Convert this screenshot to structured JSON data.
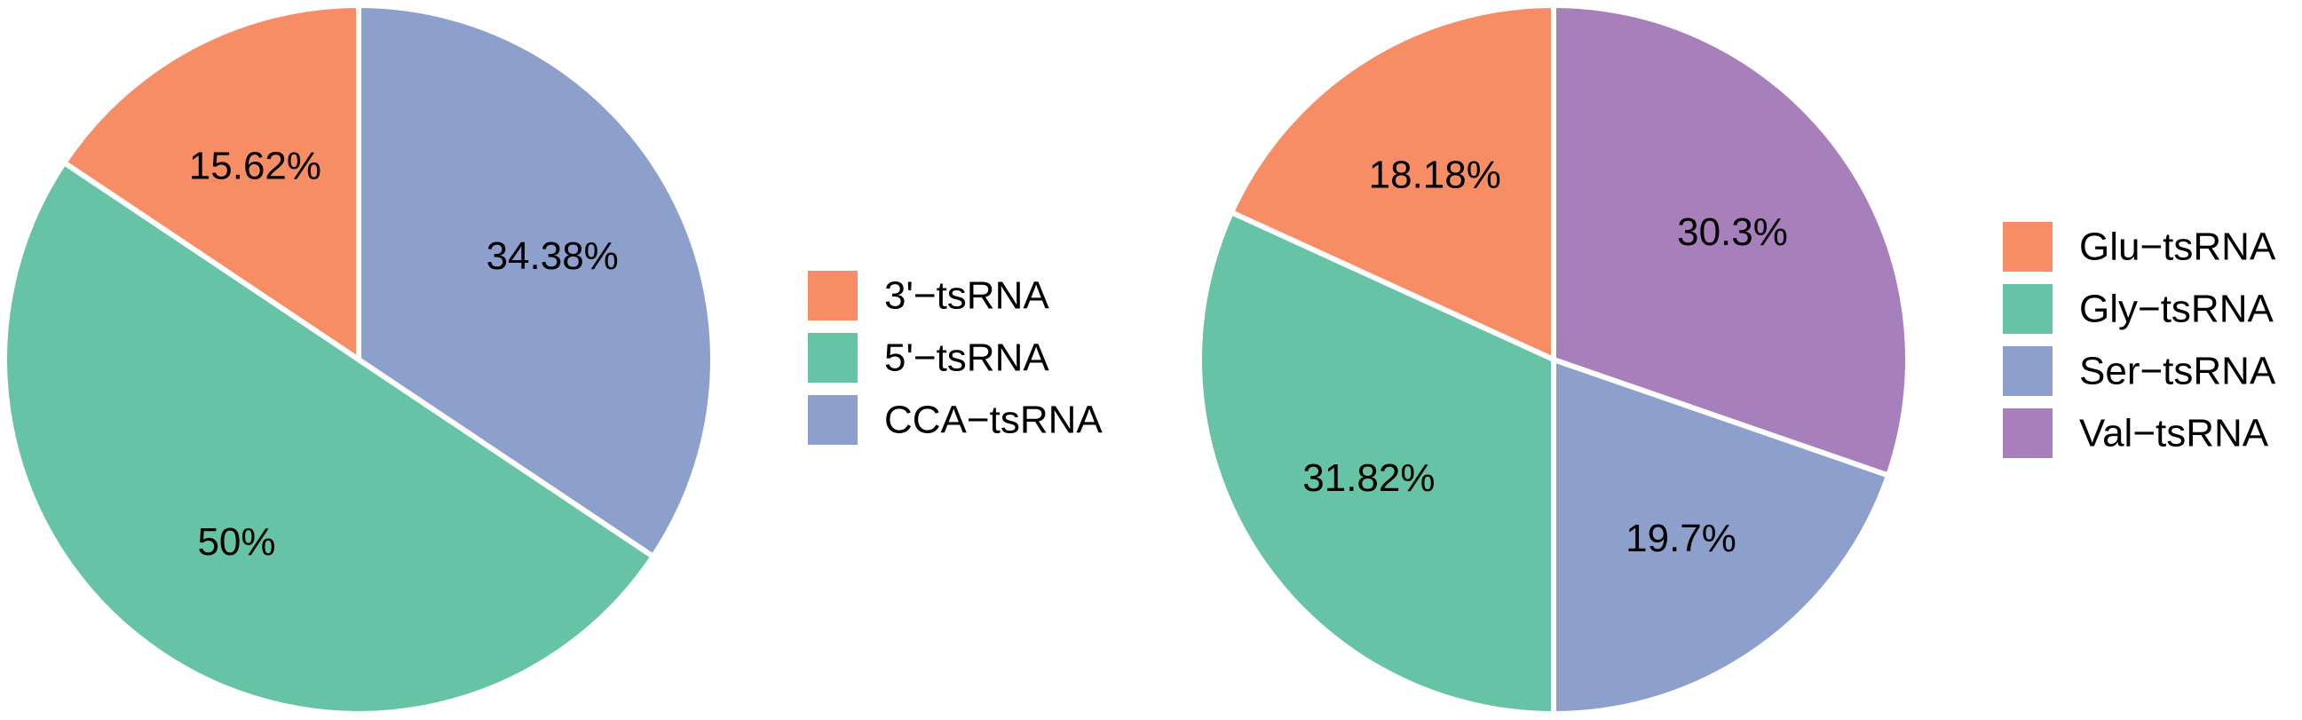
{
  "chart_data": [
    {
      "type": "pie",
      "start_angle_deg": 0,
      "direction": "counterclockwise",
      "categories": [
        "3'−tsRNA",
        "5'−tsRNA",
        "CCA−tsRNA"
      ],
      "values": [
        15.62,
        50,
        34.38
      ],
      "labels": [
        "15.62%",
        "50%",
        "34.38%"
      ],
      "colors": [
        "#F68D65",
        "#66C3A5",
        "#8DA0CB"
      ],
      "legend": {
        "position": "right",
        "entries": [
          "3'−tsRNA",
          "5'−tsRNA",
          "CCA−tsRNA"
        ]
      }
    },
    {
      "type": "pie",
      "start_angle_deg": 0,
      "direction": "counterclockwise",
      "categories": [
        "Glu−tsRNA",
        "Gly−tsRNA",
        "Ser−tsRNA",
        "Val−tsRNA"
      ],
      "values": [
        18.18,
        31.82,
        19.7,
        30.3
      ],
      "labels": [
        "18.18%",
        "31.82%",
        "19.7%",
        "30.3%"
      ],
      "colors": [
        "#F68D65",
        "#66C3A5",
        "#8DA0CB",
        "#A77FBA"
      ],
      "legend": {
        "position": "right",
        "entries": [
          "Glu−tsRNA",
          "Gly−tsRNA",
          "Ser−tsRNA",
          "Val−tsRNA"
        ]
      }
    }
  ]
}
